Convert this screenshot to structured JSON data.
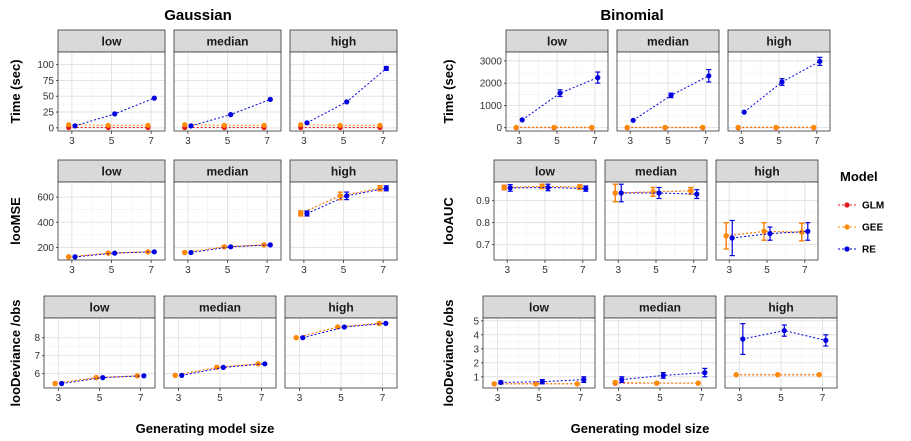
{
  "figure": {
    "left_title": "Gaussian",
    "right_title": "Binomial",
    "xlabel": "Generating model size",
    "legend": {
      "title": "Model",
      "entries": [
        {
          "name": "GLM",
          "color": "#e31a1c"
        },
        {
          "name": "GEE",
          "color": "#ff8c00"
        },
        {
          "name": "RE",
          "color": "#0000e0"
        }
      ]
    }
  },
  "chart_data": [
    {
      "type": "scatter",
      "family": "Gaussian",
      "ylabel": "Time (sec)",
      "ylim": [
        -5,
        120
      ],
      "yticks": [
        0,
        25,
        50,
        75,
        100
      ],
      "xticks": [
        3,
        5,
        7
      ],
      "panels": [
        {
          "label": "low",
          "series": {
            "GLM": {
              "y": [
                0.5,
                0.5,
                0.5
              ],
              "err": [
                0,
                0,
                0
              ]
            },
            "GEE": {
              "y": [
                5,
                4,
                4
              ],
              "err": [
                0,
                0,
                0
              ]
            },
            "RE": {
              "y": [
                3,
                22,
                47
              ],
              "err": [
                0,
                0,
                0
              ]
            }
          }
        },
        {
          "label": "median",
          "series": {
            "GLM": {
              "y": [
                0.5,
                0.5,
                0.5
              ],
              "err": [
                0,
                0,
                0
              ]
            },
            "GEE": {
              "y": [
                5,
                4,
                4
              ],
              "err": [
                0,
                0,
                0
              ]
            },
            "RE": {
              "y": [
                3,
                21,
                45
              ],
              "err": [
                0,
                0,
                0
              ]
            }
          }
        },
        {
          "label": "high",
          "series": {
            "GLM": {
              "y": [
                0.5,
                0.5,
                0.5
              ],
              "err": [
                0,
                0,
                0
              ]
            },
            "GEE": {
              "y": [
                5,
                4,
                4
              ],
              "err": [
                0,
                0,
                0
              ]
            },
            "RE": {
              "y": [
                8,
                41,
                94
              ],
              "err": [
                0,
                0,
                3
              ]
            }
          }
        }
      ]
    },
    {
      "type": "scatter",
      "family": "Binomial",
      "ylabel": "Time (sec)",
      "ylim": [
        -150,
        3400
      ],
      "yticks": [
        0,
        1000,
        2000,
        3000
      ],
      "xticks": [
        3,
        5,
        7
      ],
      "panels": [
        {
          "label": "low",
          "series": {
            "GLM": {
              "y": [
                5,
                5,
                5
              ],
              "err": [
                0,
                0,
                0
              ]
            },
            "GEE": {
              "y": [
                15,
                15,
                15
              ],
              "err": [
                0,
                0,
                0
              ]
            },
            "RE": {
              "y": [
                350,
                1550,
                2250
              ],
              "err": [
                0,
                150,
                250
              ]
            }
          }
        },
        {
          "label": "median",
          "series": {
            "GLM": {
              "y": [
                5,
                5,
                5
              ],
              "err": [
                0,
                0,
                0
              ]
            },
            "GEE": {
              "y": [
                15,
                15,
                15
              ],
              "err": [
                0,
                0,
                0
              ]
            },
            "RE": {
              "y": [
                330,
                1450,
                2330
              ],
              "err": [
                0,
                100,
                280
              ]
            }
          }
        },
        {
          "label": "high",
          "series": {
            "GLM": {
              "y": [
                5,
                5,
                5
              ],
              "err": [
                0,
                0,
                0
              ]
            },
            "GEE": {
              "y": [
                15,
                15,
                15
              ],
              "err": [
                0,
                0,
                0
              ]
            },
            "RE": {
              "y": [
                700,
                2050,
                2980
              ],
              "err": [
                0,
                150,
                180
              ]
            }
          }
        }
      ]
    },
    {
      "type": "scatter",
      "family": "Gaussian",
      "ylabel": "looMSE",
      "ylim": [
        100,
        720
      ],
      "yticks": [
        200,
        400,
        600
      ],
      "xticks": [
        3,
        5,
        7
      ],
      "panels": [
        {
          "label": "low",
          "series": {
            "GLM": {
              "y": [
                125,
                155,
                165
              ],
              "err": [
                0,
                0,
                0
              ]
            },
            "GEE": {
              "y": [
                125,
                155,
                165
              ],
              "err": [
                0,
                0,
                0
              ]
            },
            "RE": {
              "y": [
                125,
                155,
                165
              ],
              "err": [
                0,
                0,
                0
              ]
            }
          }
        },
        {
          "label": "median",
          "series": {
            "GLM": {
              "y": [
                160,
                205,
                220
              ],
              "err": [
                0,
                0,
                0
              ]
            },
            "GEE": {
              "y": [
                160,
                205,
                220
              ],
              "err": [
                0,
                0,
                0
              ]
            },
            "RE": {
              "y": [
                160,
                205,
                220
              ],
              "err": [
                0,
                0,
                0
              ]
            }
          }
        },
        {
          "label": "high",
          "series": {
            "GLM": {
              "y": [
                470,
                610,
                670
              ],
              "err": [
                20,
                30,
                20
              ]
            },
            "GEE": {
              "y": [
                470,
                610,
                670
              ],
              "err": [
                20,
                30,
                20
              ]
            },
            "RE": {
              "y": [
                470,
                610,
                670
              ],
              "err": [
                20,
                30,
                20
              ]
            }
          }
        }
      ]
    },
    {
      "type": "scatter",
      "family": "Binomial",
      "ylabel": "looAUC",
      "ylim": [
        0.63,
        0.985
      ],
      "yticks": [
        0.7,
        0.8,
        0.9
      ],
      "xticks": [
        3,
        5,
        7
      ],
      "panels": [
        {
          "label": "low",
          "series": {
            "GLM": {
              "y": [
                0.96,
                0.965,
                0.962
              ],
              "err": [
                0.01,
                0.01,
                0.01
              ]
            },
            "GEE": {
              "y": [
                0.96,
                0.965,
                0.962
              ],
              "err": [
                0.01,
                0.01,
                0.01
              ]
            },
            "RE": {
              "y": [
                0.958,
                0.96,
                0.955
              ],
              "err": [
                0.015,
                0.015,
                0.012
              ]
            }
          }
        },
        {
          "label": "median",
          "series": {
            "GLM": {
              "y": [
                0.935,
                0.94,
                0.945
              ],
              "err": [
                0.04,
                0.02,
                0.015
              ]
            },
            "GEE": {
              "y": [
                0.935,
                0.94,
                0.945
              ],
              "err": [
                0.04,
                0.02,
                0.015
              ]
            },
            "RE": {
              "y": [
                0.935,
                0.935,
                0.93
              ],
              "err": [
                0.04,
                0.025,
                0.02
              ]
            }
          }
        },
        {
          "label": "high",
          "series": {
            "GLM": {
              "y": [
                0.74,
                0.76,
                0.757
              ],
              "err": [
                0.06,
                0.04,
                0.04
              ]
            },
            "GEE": {
              "y": [
                0.74,
                0.76,
                0.757
              ],
              "err": [
                0.06,
                0.04,
                0.04
              ]
            },
            "RE": {
              "y": [
                0.73,
                0.75,
                0.76
              ],
              "err": [
                0.08,
                0.03,
                0.04
              ]
            }
          }
        }
      ]
    },
    {
      "type": "scatter",
      "family": "Gaussian",
      "ylabel": "looDeviance /obs",
      "ylim": [
        5.2,
        9.1
      ],
      "yticks": [
        6,
        7,
        8
      ],
      "xticks": [
        3,
        5,
        7
      ],
      "panels": [
        {
          "label": "low",
          "series": {
            "GLM": {
              "y": [
                5.45,
                5.78,
                5.88
              ],
              "err": [
                0,
                0,
                0
              ]
            },
            "GEE": {
              "y": [
                5.45,
                5.78,
                5.88
              ],
              "err": [
                0,
                0,
                0
              ]
            },
            "RE": {
              "y": [
                5.45,
                5.78,
                5.88
              ],
              "err": [
                0,
                0,
                0
              ]
            }
          }
        },
        {
          "label": "median",
          "series": {
            "GLM": {
              "y": [
                5.9,
                6.35,
                6.55
              ],
              "err": [
                0,
                0,
                0
              ]
            },
            "GEE": {
              "y": [
                5.9,
                6.35,
                6.55
              ],
              "err": [
                0,
                0,
                0
              ]
            },
            "RE": {
              "y": [
                5.9,
                6.35,
                6.55
              ],
              "err": [
                0,
                0,
                0
              ]
            }
          }
        },
        {
          "label": "high",
          "series": {
            "GLM": {
              "y": [
                8.0,
                8.6,
                8.8
              ],
              "err": [
                0,
                0,
                0
              ]
            },
            "GEE": {
              "y": [
                8.0,
                8.6,
                8.8
              ],
              "err": [
                0,
                0,
                0
              ]
            },
            "RE": {
              "y": [
                8.0,
                8.6,
                8.8
              ],
              "err": [
                0,
                0,
                0
              ]
            }
          }
        }
      ]
    },
    {
      "type": "scatter",
      "family": "Binomial",
      "ylabel": "looDeviance /obs",
      "ylim": [
        0.2,
        5.2
      ],
      "yticks": [
        1,
        2,
        3,
        4,
        5
      ],
      "xticks": [
        3,
        5,
        7
      ],
      "panels": [
        {
          "label": "low",
          "series": {
            "GLM": {
              "y": [
                0.5,
                0.5,
                0.5
              ],
              "err": [
                0,
                0,
                0
              ]
            },
            "GEE": {
              "y": [
                0.5,
                0.5,
                0.5
              ],
              "err": [
                0,
                0,
                0
              ]
            },
            "RE": {
              "y": [
                0.6,
                0.65,
                0.8
              ],
              "err": [
                0.1,
                0.15,
                0.2
              ]
            }
          }
        },
        {
          "label": "median",
          "series": {
            "GLM": {
              "y": [
                0.55,
                0.55,
                0.55
              ],
              "err": [
                0,
                0,
                0
              ]
            },
            "GEE": {
              "y": [
                0.6,
                0.55,
                0.55
              ],
              "err": [
                0.1,
                0,
                0
              ]
            },
            "RE": {
              "y": [
                0.8,
                1.1,
                1.3
              ],
              "err": [
                0.2,
                0.2,
                0.3
              ]
            }
          }
        },
        {
          "label": "high",
          "series": {
            "GLM": {
              "y": [
                1.15,
                1.15,
                1.15
              ],
              "err": [
                0,
                0,
                0
              ]
            },
            "GEE": {
              "y": [
                1.15,
                1.15,
                1.15
              ],
              "err": [
                0,
                0,
                0
              ]
            },
            "RE": {
              "y": [
                3.7,
                4.3,
                3.6
              ],
              "err": [
                1.1,
                0.4,
                0.4
              ]
            }
          }
        }
      ]
    }
  ]
}
